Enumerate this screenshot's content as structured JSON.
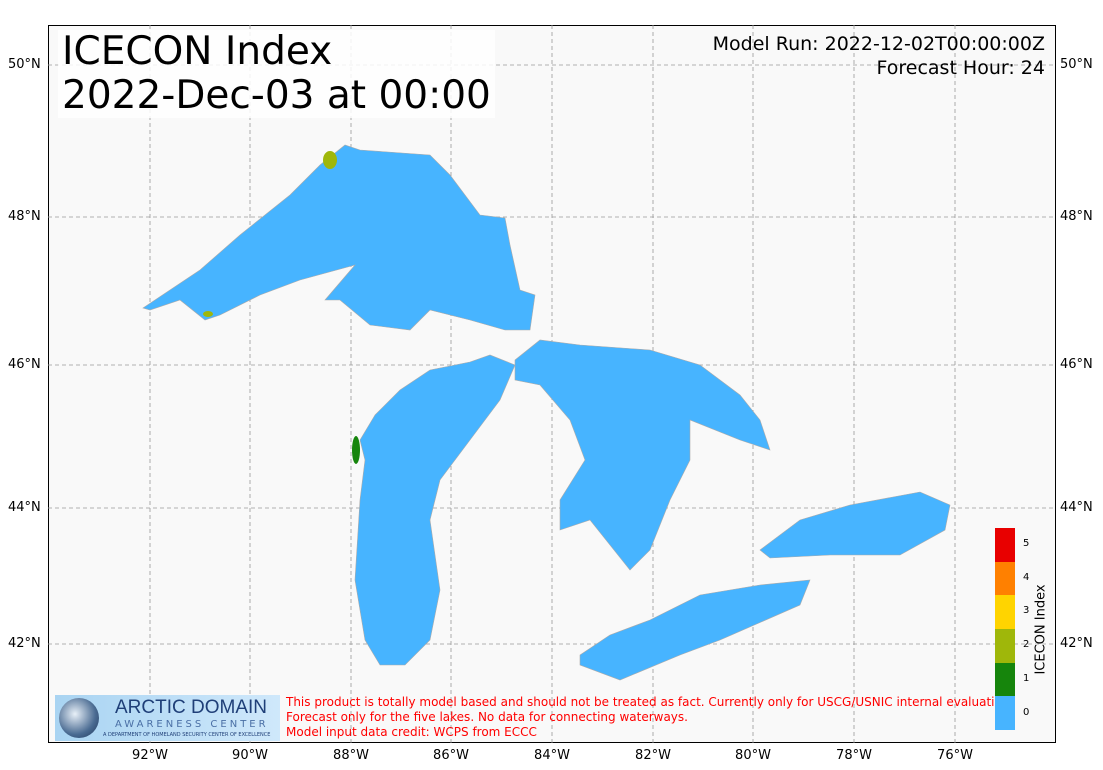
{
  "title": {
    "line1": "ICECON Index",
    "line2": "2022-Dec-03 at 00:00"
  },
  "model_run": "Model Run: 2022-12-02T00:00:00Z",
  "forecast_hour": "Forecast Hour: 24",
  "lat_labels": [
    "50°N",
    "48°N",
    "46°N",
    "44°N",
    "42°N"
  ],
  "lon_labels": [
    "92°W",
    "90°W",
    "88°W",
    "86°W",
    "84°W",
    "82°W",
    "80°W",
    "78°W",
    "76°W"
  ],
  "colorbar": {
    "label": "ICECON Index",
    "ticks": [
      "0",
      "1",
      "2",
      "3",
      "4",
      "5"
    ],
    "colors": [
      "#47b4ff",
      "#16850c",
      "#9fb70a",
      "#ffd400",
      "#ff8000",
      "#e80000"
    ]
  },
  "lake_color": "#47b4ff",
  "logo": {
    "name": "ARCTIC DOMAIN",
    "sub": "AWARENESS CENTER",
    "tag": "A DEPARTMENT OF HOMELAND SECURITY CENTER OF EXCELLENCE"
  },
  "disclaimer": [
    "This product is totally model based and should not be treated as fact. Currently only for USCG/USNIC internal evaluation.",
    "Forecast only for the five lakes. No data for connecting waterways.",
    "Model input data credit: WCPS from ECCC"
  ]
}
